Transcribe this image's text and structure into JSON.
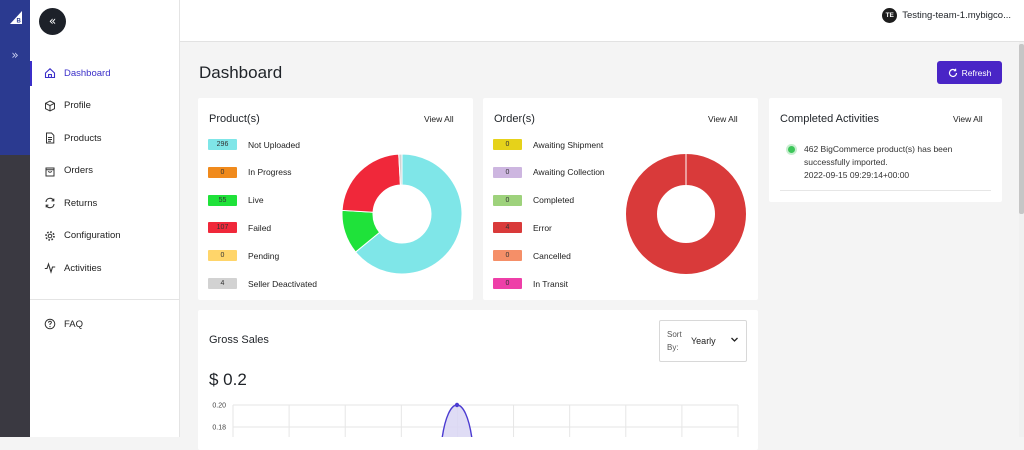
{
  "account": {
    "initials": "TE",
    "name": "Testing-team-1.mybigco..."
  },
  "sidebar": {
    "expand_glyph": "»",
    "collapse_glyph": "«",
    "items": [
      {
        "label": "Dashboard",
        "icon": "home-icon",
        "active": true
      },
      {
        "label": "Profile",
        "icon": "cube-icon",
        "active": false
      },
      {
        "label": "Products",
        "icon": "document-icon",
        "active": false
      },
      {
        "label": "Orders",
        "icon": "bag-icon",
        "active": false
      },
      {
        "label": "Returns",
        "icon": "return-arrows-icon",
        "active": false
      },
      {
        "label": "Configuration",
        "icon": "gear-icon",
        "active": false
      },
      {
        "label": "Activities",
        "icon": "pulse-icon",
        "active": false
      }
    ],
    "faq": {
      "label": "FAQ",
      "icon": "question-icon"
    }
  },
  "page": {
    "title": "Dashboard",
    "refresh_label": "Refresh"
  },
  "products_card": {
    "title": "Product(s)",
    "view_all": "View All",
    "rows": [
      {
        "count": "296",
        "label": "Not Uploaded",
        "color": "#7fe6e8"
      },
      {
        "count": "0",
        "label": "In Progress",
        "color": "#f08a1c"
      },
      {
        "count": "55",
        "label": "Live",
        "color": "#1fe23a"
      },
      {
        "count": "107",
        "label": "Failed",
        "color": "#f0283a"
      },
      {
        "count": "0",
        "label": "Pending",
        "color": "#ffd56a"
      },
      {
        "count": "4",
        "label": "Seller Deactivated",
        "color": "#d2d2d2"
      }
    ]
  },
  "orders_card": {
    "title": "Order(s)",
    "view_all": "View All",
    "rows": [
      {
        "count": "0",
        "label": "Awaiting Shipment",
        "color": "#e6d21a"
      },
      {
        "count": "0",
        "label": "Awaiting Collection",
        "color": "#cdb6e0"
      },
      {
        "count": "0",
        "label": "Completed",
        "color": "#9ed27c"
      },
      {
        "count": "4",
        "label": "Error",
        "color": "#d93a3a"
      },
      {
        "count": "0",
        "label": "Cancelled",
        "color": "#f58f68"
      },
      {
        "count": "0",
        "label": "In Transit",
        "color": "#ee3fa8"
      }
    ]
  },
  "activities_card": {
    "title": "Completed Activities",
    "view_all": "View All",
    "items": [
      {
        "text": "462 BigCommerce product(s) has been successfully imported.",
        "timestamp": "2022-09-15 09:29:14+00:00",
        "status_color": "#3cc65a"
      }
    ]
  },
  "gross_sales": {
    "title": "Gross Sales",
    "value": "$ 0.2",
    "sort": {
      "label": "Sort By:",
      "value": "Yearly"
    }
  },
  "chart_data": [
    {
      "type": "pie",
      "categories": [
        "Not Uploaded",
        "In Progress",
        "Live",
        "Failed",
        "Pending",
        "Seller Deactivated"
      ],
      "values": [
        296,
        0,
        55,
        107,
        0,
        4
      ],
      "colors": [
        "#7fe6e8",
        "#f08a1c",
        "#1fe23a",
        "#f0283a",
        "#ffd56a",
        "#d2d2d2"
      ],
      "donut": true
    },
    {
      "type": "pie",
      "categories": [
        "Awaiting Shipment",
        "Awaiting Collection",
        "Completed",
        "Error",
        "Cancelled",
        "In Transit"
      ],
      "values": [
        0,
        0,
        0,
        4,
        0,
        0
      ],
      "colors": [
        "#e6d21a",
        "#cdb6e0",
        "#9ed27c",
        "#d93a3a",
        "#f58f68",
        "#ee3fa8"
      ],
      "donut": true
    },
    {
      "type": "area",
      "y_tick_labels": [
        "0.20",
        "0.18"
      ],
      "ylim_visible": [
        0.18,
        0.2
      ],
      "peak_value": 0.2,
      "grid": true,
      "fill": "#d9d6f3",
      "stroke": "#4b3bd1"
    }
  ]
}
